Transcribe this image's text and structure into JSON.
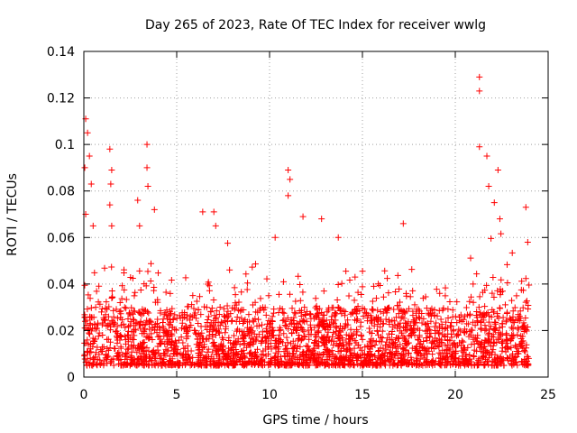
{
  "chart_data": {
    "type": "scatter",
    "title": "Day 265 of 2023, Rate Of TEC Index for receiver wwlg",
    "xlabel": "GPS time / hours",
    "ylabel": "ROTI / TECUs",
    "xlim": [
      0,
      25
    ],
    "ylim": [
      0,
      0.14
    ],
    "xticks": [
      0,
      5,
      10,
      15,
      20,
      25
    ],
    "xtick_labels": [
      "0",
      "5",
      "10",
      "15",
      "20",
      "25"
    ],
    "yticks": [
      0,
      0.02,
      0.04,
      0.06,
      0.08,
      0.1,
      0.12,
      0.14
    ],
    "ytick_labels": [
      "0",
      "0.02",
      "0.04",
      "0.06",
      "0.08",
      "0.1",
      "0.12",
      "0.14"
    ],
    "grid": true,
    "marker": "+",
    "series": [
      {
        "name": "ROTI",
        "color": "#ff0000",
        "baseline_band": [
          0.005,
          0.03
        ],
        "notable_points": [
          {
            "x": 0.1,
            "y": 0.111
          },
          {
            "x": 0.2,
            "y": 0.105
          },
          {
            "x": 0.05,
            "y": 0.09
          },
          {
            "x": 0.3,
            "y": 0.095
          },
          {
            "x": 0.4,
            "y": 0.083
          },
          {
            "x": 0.1,
            "y": 0.07
          },
          {
            "x": 0.5,
            "y": 0.065
          },
          {
            "x": 1.4,
            "y": 0.098
          },
          {
            "x": 1.5,
            "y": 0.089
          },
          {
            "x": 1.45,
            "y": 0.083
          },
          {
            "x": 1.4,
            "y": 0.074
          },
          {
            "x": 1.5,
            "y": 0.065
          },
          {
            "x": 2.9,
            "y": 0.076
          },
          {
            "x": 3.0,
            "y": 0.065
          },
          {
            "x": 3.4,
            "y": 0.1
          },
          {
            "x": 3.4,
            "y": 0.09
          },
          {
            "x": 3.45,
            "y": 0.082
          },
          {
            "x": 3.8,
            "y": 0.072
          },
          {
            "x": 6.4,
            "y": 0.071
          },
          {
            "x": 7.0,
            "y": 0.071
          },
          {
            "x": 7.1,
            "y": 0.065
          },
          {
            "x": 11.0,
            "y": 0.089
          },
          {
            "x": 11.0,
            "y": 0.078
          },
          {
            "x": 11.1,
            "y": 0.085
          },
          {
            "x": 10.3,
            "y": 0.06
          },
          {
            "x": 11.8,
            "y": 0.069
          },
          {
            "x": 12.8,
            "y": 0.068
          },
          {
            "x": 13.7,
            "y": 0.06
          },
          {
            "x": 17.2,
            "y": 0.066
          },
          {
            "x": 21.3,
            "y": 0.129
          },
          {
            "x": 21.3,
            "y": 0.123
          },
          {
            "x": 21.3,
            "y": 0.099
          },
          {
            "x": 21.7,
            "y": 0.095
          },
          {
            "x": 22.3,
            "y": 0.089
          },
          {
            "x": 21.8,
            "y": 0.082
          },
          {
            "x": 22.1,
            "y": 0.075
          },
          {
            "x": 22.4,
            "y": 0.068
          },
          {
            "x": 23.8,
            "y": 0.073
          },
          {
            "x": 23.9,
            "y": 0.058
          }
        ]
      }
    ]
  }
}
